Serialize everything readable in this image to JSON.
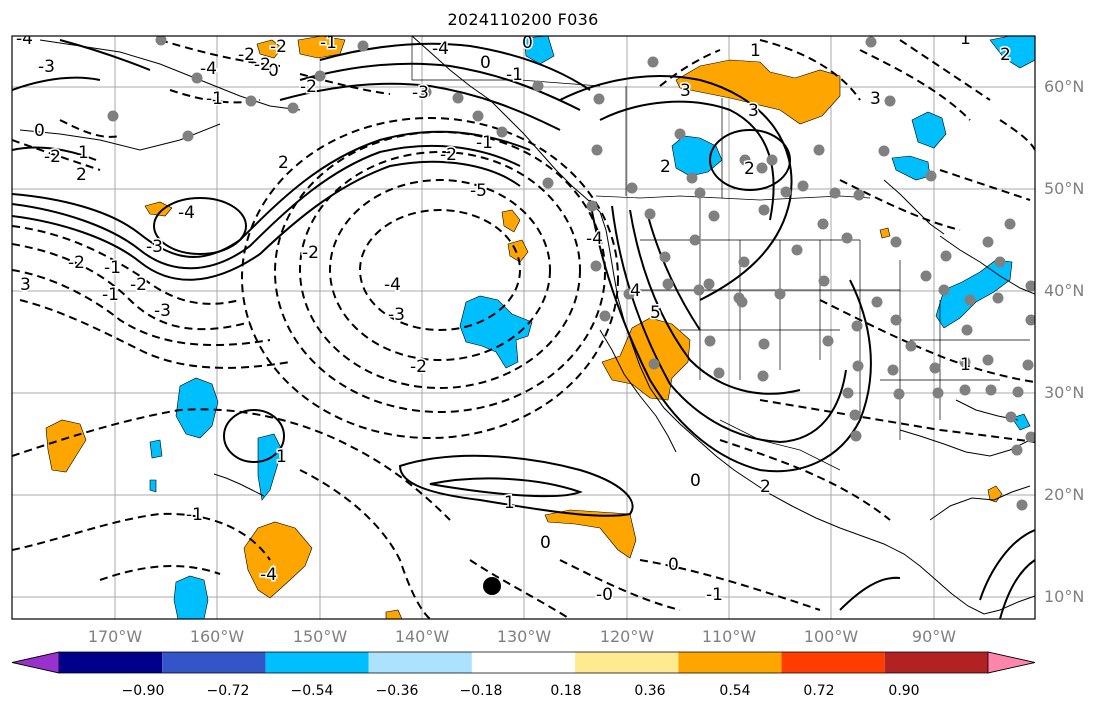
{
  "title": "2024110200 F036",
  "map": {
    "lat_labels": [
      "60°N",
      "50°N",
      "40°N",
      "30°N",
      "20°N",
      "10°N"
    ],
    "lon_labels": [
      "170°W",
      "160°W",
      "150°W",
      "140°W",
      "130°W",
      "120°W",
      "110°W",
      "100°W",
      "90°W"
    ],
    "contour_labels": [
      "-4",
      "-3",
      "0",
      "-2",
      "1",
      "2",
      "-2",
      "-1",
      "-1",
      "-2",
      "-3",
      "2",
      "-4",
      "-3",
      "-5",
      "3",
      "0",
      "-1",
      "-3",
      "-2",
      "-2",
      "-4",
      "-3",
      "-2",
      "-4",
      "-4",
      "5",
      "2",
      "0",
      "0",
      "3",
      "1",
      "3",
      "4",
      "2",
      "1",
      "-1",
      "0",
      "-1",
      "-0",
      "0",
      "-1",
      "0",
      "-1",
      "2",
      "1",
      "-1",
      "-2",
      "-2",
      "-4",
      "-2",
      "-2",
      "-4",
      "1",
      "2",
      "3",
      "1"
    ]
  },
  "colorbar": {
    "colors": [
      "#9932CC",
      "#00008B",
      "#3455C8",
      "#00BFFF",
      "#ADE2FF",
      "#FFFFFF",
      "#FFEB8F",
      "#FFA500",
      "#FF3D00",
      "#B22222",
      "#FF85AD"
    ],
    "tick_labels": [
      "−0.90",
      "−0.72",
      "−0.54",
      "−0.36",
      "−0.18",
      "0.18",
      "0.36",
      "0.54",
      "0.72",
      "0.90"
    ]
  },
  "fill_colors": {
    "positive": "#FFA500",
    "negative": "#00BFFF",
    "stations": "#808080"
  }
}
